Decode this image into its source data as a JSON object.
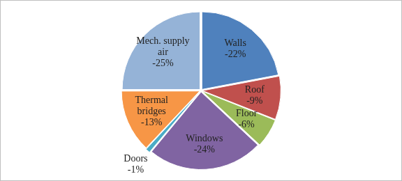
{
  "chart_data": {
    "type": "pie",
    "categories": [
      "Walls",
      "Roof",
      "Floor",
      "Windows",
      "Doors",
      "Thermal bridges",
      "Mech. supply air"
    ],
    "values": [
      -22,
      -9,
      -6,
      -24,
      -1,
      -13,
      -25
    ],
    "value_labels": [
      "-22%",
      "-9%",
      "-6%",
      "-24%",
      "-1%",
      "-13%",
      "-25%"
    ],
    "colors": [
      "#4f81bd",
      "#c0504d",
      "#9bbb59",
      "#8064a2",
      "#4bacc6",
      "#f79646",
      "#95b3d7"
    ],
    "data_labels": true
  }
}
